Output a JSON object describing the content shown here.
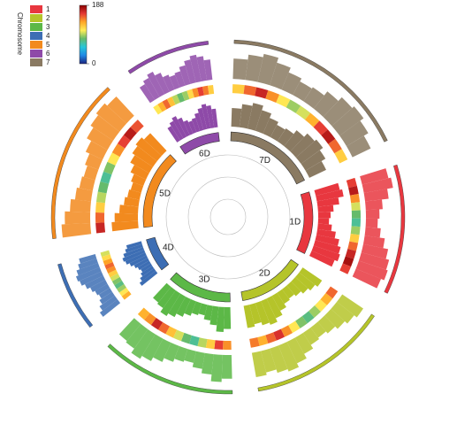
{
  "chart_data": {
    "type": "circos",
    "legend": {
      "title": "Chromosome",
      "items": [
        {
          "label": "1",
          "color": "#e8373f"
        },
        {
          "label": "2",
          "color": "#b5c42a"
        },
        {
          "label": "3",
          "color": "#5cb847"
        },
        {
          "label": "4",
          "color": "#3d6eb4"
        },
        {
          "label": "5",
          "color": "#f28a1e"
        },
        {
          "label": "6",
          "color": "#8e4aa8"
        },
        {
          "label": "7",
          "color": "#8a7a62"
        }
      ]
    },
    "colorbar": {
      "lim": [
        0,
        188
      ],
      "ticks": [
        0,
        188
      ]
    },
    "chromosomes": [
      {
        "name": "7D",
        "color": "#8a7a62",
        "length": 190,
        "density": [
          120,
          150,
          170,
          140,
          110,
          90,
          100,
          130,
          160,
          175,
          150,
          120
        ]
      },
      {
        "name": "1D",
        "color": "#e8373f",
        "length": 130,
        "density": [
          160,
          175,
          140,
          100,
          80,
          70,
          90,
          120,
          150,
          170,
          180,
          160
        ]
      },
      {
        "name": "2D",
        "color": "#b5c42a",
        "length": 140,
        "density": [
          150,
          130,
          110,
          90,
          75,
          85,
          110,
          140,
          165,
          150,
          130,
          145
        ]
      },
      {
        "name": "3D",
        "color": "#5cb847",
        "length": 135,
        "density": [
          140,
          160,
          120,
          95,
          70,
          80,
          100,
          125,
          150,
          170,
          140,
          130
        ]
      },
      {
        "name": "4D",
        "color": "#3d6eb4",
        "length": 70,
        "density": [
          130,
          110,
          90,
          75,
          85,
          100,
          120,
          140,
          150,
          135,
          115,
          100
        ]
      },
      {
        "name": "5D",
        "color": "#f28a1e",
        "length": 165,
        "density": [
          170,
          150,
          120,
          95,
          80,
          70,
          85,
          110,
          140,
          160,
          175,
          155
        ]
      },
      {
        "name": "6D",
        "color": "#8e4aa8",
        "length": 85,
        "density": [
          110,
          130,
          150,
          125,
          95,
          80,
          90,
          115,
          140,
          160,
          145,
          120
        ]
      }
    ]
  }
}
